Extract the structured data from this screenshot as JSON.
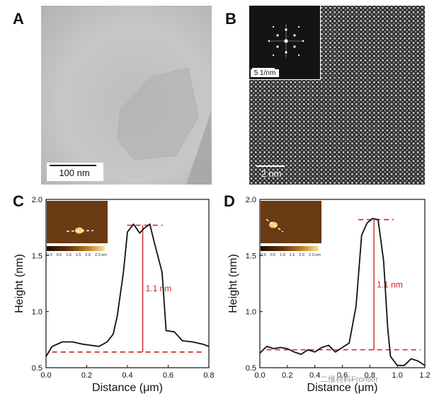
{
  "panels": {
    "a": {
      "letter": "A",
      "scale_bar": "100 nm"
    },
    "b": {
      "letter": "B",
      "scale_bar": "2 nm",
      "inset_scale_bar": "5 1/nm"
    },
    "c": {
      "letter": "C"
    },
    "d": {
      "letter": "D"
    }
  },
  "colorbar": {
    "ticks": [
      "0.0",
      "0.5",
      "1.0",
      "1.5",
      "2.0",
      "2.3 nm"
    ]
  },
  "watermark": "二维材料Frontier",
  "colors": {
    "trace": "#111111",
    "annotation": "#cc2222"
  },
  "chart_data": [
    {
      "type": "line",
      "panel": "C",
      "xlabel": "Distance (μm)",
      "ylabel": "Height (nm)",
      "xlim": [
        0.0,
        0.8
      ],
      "ylim": [
        0.5,
        2.0
      ],
      "xticks": [
        "0.0",
        "0.2",
        "0.4",
        "0.6",
        "0.8"
      ],
      "yticks": [
        "0.5",
        "1.0",
        "1.5",
        "2.0"
      ],
      "x": [
        0.0,
        0.03,
        0.08,
        0.13,
        0.18,
        0.22,
        0.26,
        0.3,
        0.33,
        0.35,
        0.38,
        0.4,
        0.43,
        0.46,
        0.48,
        0.51,
        0.53,
        0.57,
        0.59,
        0.63,
        0.67,
        0.72,
        0.77,
        0.8
      ],
      "y": [
        0.6,
        0.69,
        0.73,
        0.73,
        0.71,
        0.7,
        0.69,
        0.73,
        0.8,
        0.96,
        1.35,
        1.71,
        1.78,
        1.7,
        1.74,
        1.78,
        1.63,
        1.35,
        0.83,
        0.82,
        0.74,
        0.73,
        0.71,
        0.69
      ],
      "baseline": 0.64,
      "peak_line": 1.77,
      "marker_x": 0.475,
      "annotation": "1.1 nm"
    },
    {
      "type": "line",
      "panel": "D",
      "xlabel": "Distance (μm)",
      "ylabel": "Height (nm)",
      "xlim": [
        0.0,
        1.2
      ],
      "ylim": [
        0.5,
        2.0
      ],
      "xticks": [
        "0.0",
        "0.2",
        "0.4",
        "0.6",
        "0.8",
        "1.0",
        "1.2"
      ],
      "yticks": [
        "0.5",
        "1.0",
        "1.5",
        "2.0"
      ],
      "x": [
        0.0,
        0.05,
        0.1,
        0.15,
        0.2,
        0.25,
        0.3,
        0.35,
        0.4,
        0.45,
        0.5,
        0.55,
        0.6,
        0.65,
        0.7,
        0.74,
        0.78,
        0.82,
        0.86,
        0.9,
        0.93,
        0.95,
        1.0,
        1.05,
        1.1,
        1.15,
        1.2
      ],
      "y": [
        0.63,
        0.69,
        0.67,
        0.68,
        0.67,
        0.64,
        0.62,
        0.66,
        0.64,
        0.68,
        0.7,
        0.64,
        0.68,
        0.72,
        1.05,
        1.68,
        1.79,
        1.83,
        1.82,
        1.45,
        0.85,
        0.6,
        0.52,
        0.52,
        0.58,
        0.56,
        0.52
      ],
      "baseline": 0.66,
      "peak_line": 1.82,
      "marker_x": 0.83,
      "annotation": "1.1 nm"
    }
  ]
}
